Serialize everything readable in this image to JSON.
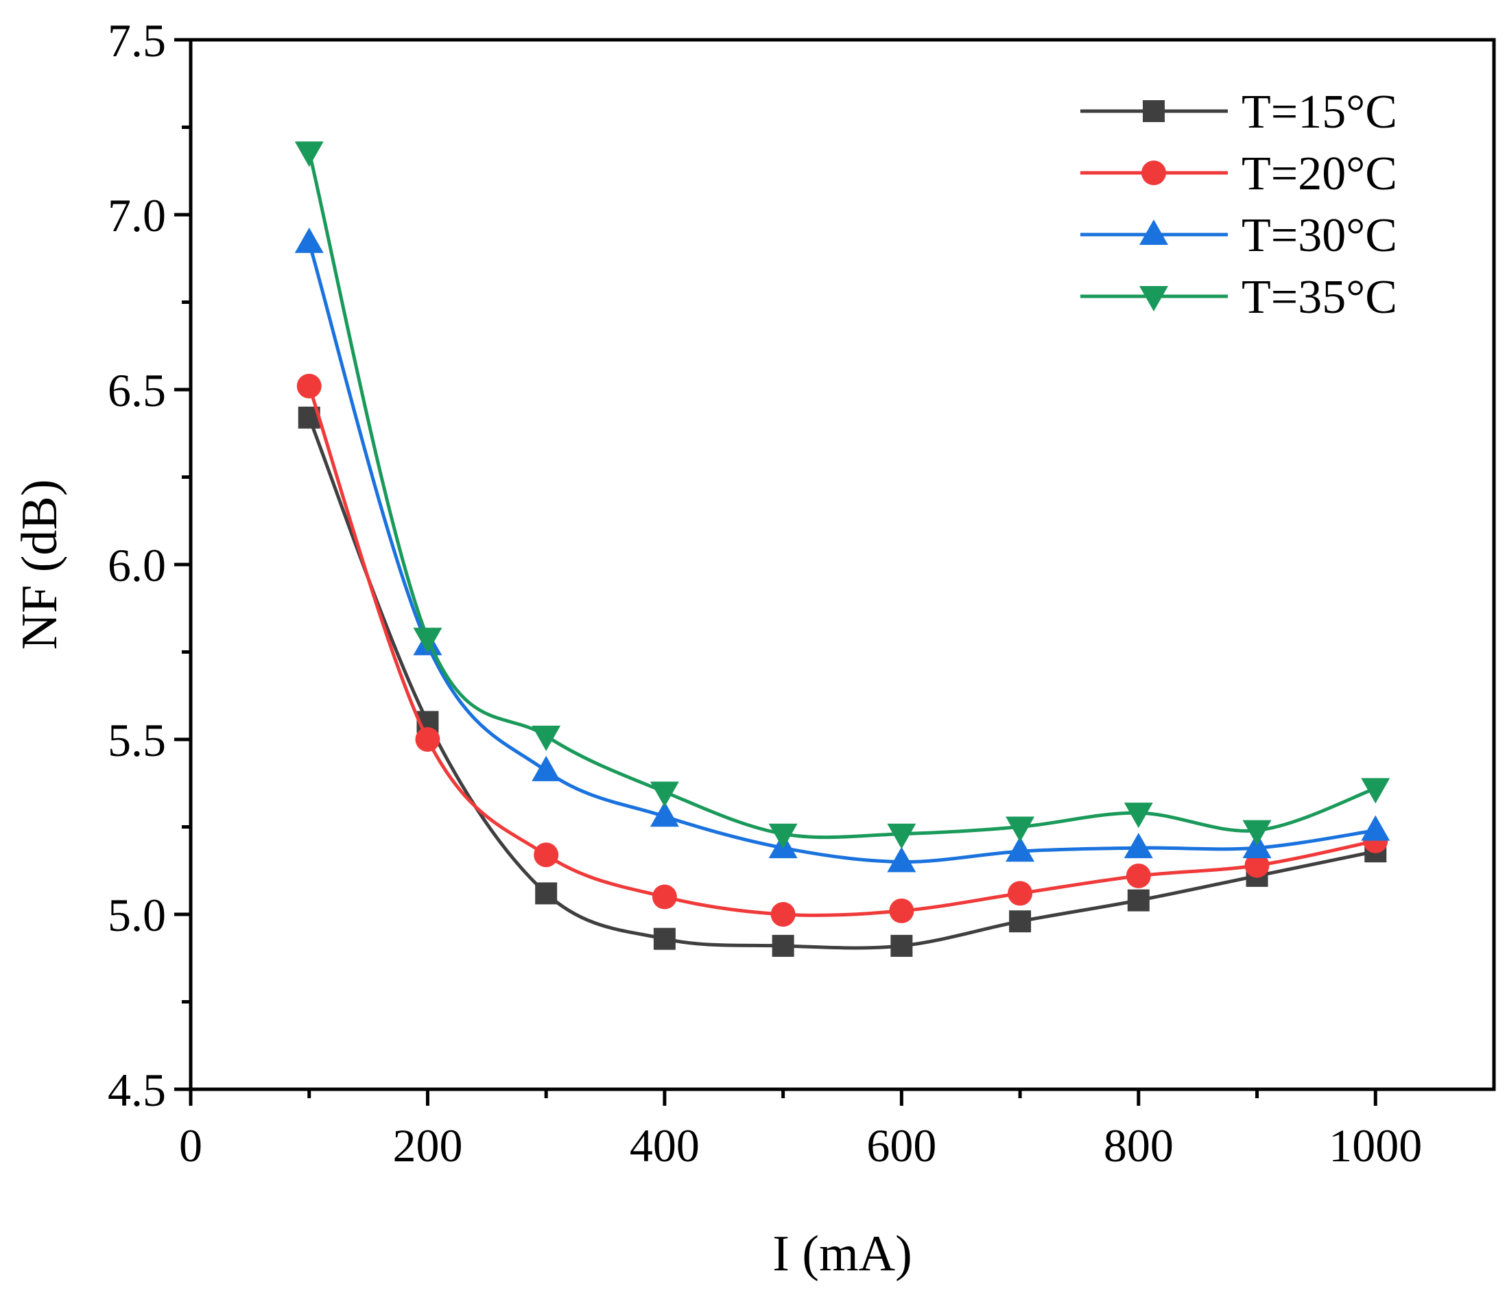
{
  "chart_data": {
    "type": "line",
    "title": "",
    "xlabel": "I (mA)",
    "ylabel": "NF (dB)",
    "xlim": [
      0,
      1100
    ],
    "ylim": [
      4.5,
      7.5
    ],
    "xticks": [
      0,
      200,
      400,
      600,
      800,
      1000
    ],
    "xtick_labels": [
      "0",
      "200",
      "400",
      "600",
      "800",
      "1000"
    ],
    "yticks": [
      4.5,
      5.0,
      5.5,
      6.0,
      6.5,
      7.0,
      7.5
    ],
    "ytick_labels": [
      "4.5",
      "5.0",
      "5.5",
      "6.0",
      "6.5",
      "7.0",
      "7.5"
    ],
    "grid": false,
    "legend_position": "top-right",
    "x": [
      100,
      200,
      300,
      400,
      500,
      600,
      700,
      800,
      900,
      1000
    ],
    "series": [
      {
        "name": "T=15°C",
        "color": "#3f3f3f",
        "marker": "square",
        "values": [
          6.42,
          5.55,
          5.06,
          4.93,
          4.91,
          4.91,
          4.98,
          5.04,
          5.11,
          5.18
        ]
      },
      {
        "name": "T=20°C",
        "color": "#f03a3a",
        "marker": "circle",
        "values": [
          6.51,
          5.5,
          5.17,
          5.05,
          5.0,
          5.01,
          5.06,
          5.11,
          5.14,
          5.21
        ]
      },
      {
        "name": "T=30°C",
        "color": "#1a72de",
        "marker": "triangle-up",
        "values": [
          6.92,
          5.77,
          5.41,
          5.28,
          5.19,
          5.15,
          5.18,
          5.19,
          5.19,
          5.24
        ]
      },
      {
        "name": "T=35°C",
        "color": "#1a9a5a",
        "marker": "triangle-down",
        "values": [
          7.18,
          5.79,
          5.51,
          5.35,
          5.23,
          5.23,
          5.25,
          5.29,
          5.24,
          5.36
        ]
      }
    ]
  }
}
